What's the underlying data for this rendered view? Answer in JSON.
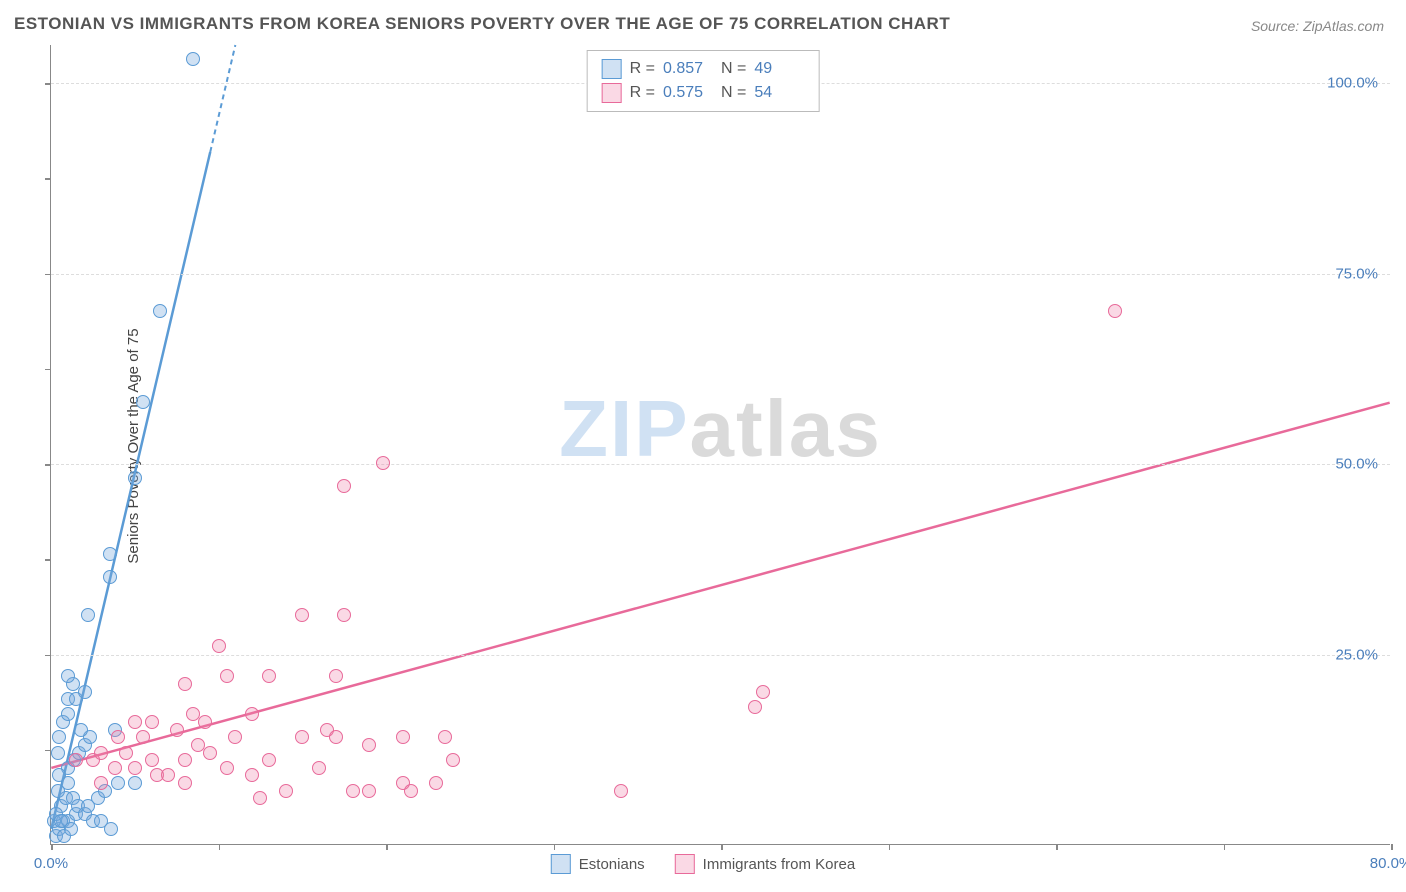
{
  "title": "ESTONIAN VS IMMIGRANTS FROM KOREA SENIORS POVERTY OVER THE AGE OF 75 CORRELATION CHART",
  "source": "Source: ZipAtlas.com",
  "y_axis_label": "Seniors Poverty Over the Age of 75",
  "watermark": {
    "part1": "ZIP",
    "part2": "atlas"
  },
  "chart": {
    "type": "scatter",
    "background_color": "#ffffff",
    "grid_color": "#dddddd",
    "axis_color": "#888888",
    "tick_color": "#4a7ebb",
    "tick_fontsize": 15,
    "title_fontsize": 17,
    "xlim": [
      0,
      80
    ],
    "ylim": [
      0,
      105
    ],
    "y_ticks": [
      {
        "v": 25,
        "label": "25.0%"
      },
      {
        "v": 50,
        "label": "50.0%"
      },
      {
        "v": 75,
        "label": "75.0%"
      },
      {
        "v": 100,
        "label": "100.0%"
      }
    ],
    "x_ticks": [
      {
        "v": 0,
        "label": "0.0%"
      },
      {
        "v": 80,
        "label": "80.0%"
      }
    ],
    "x_minor_ticks": [
      10,
      20,
      30,
      40,
      50,
      60,
      70
    ],
    "y_minor_ticks": [
      12.5,
      37.5,
      62.5,
      87.5
    ]
  },
  "series": [
    {
      "name": "Estonians",
      "color_fill": "rgba(120,170,220,0.35)",
      "color_stroke": "#5b9bd5",
      "marker_size": 14,
      "R": "0.857",
      "N": "49",
      "trend": {
        "x1": 0,
        "y1": 2,
        "x2": 11,
        "y2": 105,
        "dash_from_x": 9.5
      },
      "points": [
        {
          "x": 0.3,
          "y": 1
        },
        {
          "x": 0.5,
          "y": 2
        },
        {
          "x": 0.7,
          "y": 3
        },
        {
          "x": 1.0,
          "y": 3
        },
        {
          "x": 0.8,
          "y": 1
        },
        {
          "x": 1.2,
          "y": 2
        },
        {
          "x": 1.5,
          "y": 4
        },
        {
          "x": 0.6,
          "y": 5
        },
        {
          "x": 0.9,
          "y": 6
        },
        {
          "x": 1.3,
          "y": 6
        },
        {
          "x": 1.6,
          "y": 5
        },
        {
          "x": 2.0,
          "y": 4
        },
        {
          "x": 2.5,
          "y": 3
        },
        {
          "x": 3.0,
          "y": 3
        },
        {
          "x": 3.6,
          "y": 2
        },
        {
          "x": 4.0,
          "y": 8
        },
        {
          "x": 5.0,
          "y": 8
        },
        {
          "x": 1.0,
          "y": 10
        },
        {
          "x": 1.4,
          "y": 11
        },
        {
          "x": 1.7,
          "y": 12
        },
        {
          "x": 2.0,
          "y": 13
        },
        {
          "x": 2.3,
          "y": 14
        },
        {
          "x": 1.8,
          "y": 15
        },
        {
          "x": 0.7,
          "y": 16
        },
        {
          "x": 1.0,
          "y": 17
        },
        {
          "x": 1.0,
          "y": 19
        },
        {
          "x": 1.5,
          "y": 19
        },
        {
          "x": 2.0,
          "y": 20
        },
        {
          "x": 1.3,
          "y": 21
        },
        {
          "x": 1.0,
          "y": 22
        },
        {
          "x": 0.5,
          "y": 14
        },
        {
          "x": 0.5,
          "y": 9
        },
        {
          "x": 1.0,
          "y": 8
        },
        {
          "x": 3.8,
          "y": 15
        },
        {
          "x": 2.2,
          "y": 30
        },
        {
          "x": 3.5,
          "y": 35
        },
        {
          "x": 3.5,
          "y": 38
        },
        {
          "x": 5.0,
          "y": 48
        },
        {
          "x": 5.5,
          "y": 58
        },
        {
          "x": 6.5,
          "y": 70
        },
        {
          "x": 8.5,
          "y": 103
        },
        {
          "x": 2.2,
          "y": 5
        },
        {
          "x": 2.8,
          "y": 6
        },
        {
          "x": 3.2,
          "y": 7
        },
        {
          "x": 0.4,
          "y": 7
        },
        {
          "x": 0.4,
          "y": 12
        },
        {
          "x": 0.2,
          "y": 3
        },
        {
          "x": 0.3,
          "y": 4
        },
        {
          "x": 0.6,
          "y": 3
        }
      ]
    },
    {
      "name": "Immigrants from Korea",
      "color_fill": "rgba(240,130,170,0.30)",
      "color_stroke": "#e86a9a",
      "marker_size": 14,
      "R": "0.575",
      "N": "54",
      "trend": {
        "x1": 0,
        "y1": 10,
        "x2": 80,
        "y2": 58,
        "dash_from_x": 80
      },
      "points": [
        {
          "x": 1.5,
          "y": 11
        },
        {
          "x": 2.5,
          "y": 11
        },
        {
          "x": 3.0,
          "y": 12
        },
        {
          "x": 3.8,
          "y": 10
        },
        {
          "x": 4.5,
          "y": 12
        },
        {
          "x": 5.0,
          "y": 10
        },
        {
          "x": 5.5,
          "y": 14
        },
        {
          "x": 6.0,
          "y": 11
        },
        {
          "x": 6.3,
          "y": 9
        },
        {
          "x": 6.0,
          "y": 16
        },
        {
          "x": 7.0,
          "y": 9
        },
        {
          "x": 7.5,
          "y": 15
        },
        {
          "x": 8.0,
          "y": 11
        },
        {
          "x": 8.0,
          "y": 8
        },
        {
          "x": 8.5,
          "y": 17
        },
        {
          "x": 8.0,
          "y": 21
        },
        {
          "x": 8.8,
          "y": 13
        },
        {
          "x": 9.2,
          "y": 16
        },
        {
          "x": 9.5,
          "y": 12
        },
        {
          "x": 10.0,
          "y": 26
        },
        {
          "x": 10.5,
          "y": 10
        },
        {
          "x": 10.5,
          "y": 22
        },
        {
          "x": 11.0,
          "y": 14
        },
        {
          "x": 12.0,
          "y": 9
        },
        {
          "x": 12.0,
          "y": 17
        },
        {
          "x": 12.5,
          "y": 6
        },
        {
          "x": 13.0,
          "y": 11
        },
        {
          "x": 13.0,
          "y": 22
        },
        {
          "x": 14.0,
          "y": 7
        },
        {
          "x": 15.0,
          "y": 14
        },
        {
          "x": 15.0,
          "y": 30
        },
        {
          "x": 16.0,
          "y": 10
        },
        {
          "x": 16.5,
          "y": 15
        },
        {
          "x": 17.0,
          "y": 14
        },
        {
          "x": 17.0,
          "y": 22
        },
        {
          "x": 17.5,
          "y": 47
        },
        {
          "x": 17.5,
          "y": 30
        },
        {
          "x": 18.0,
          "y": 7
        },
        {
          "x": 19.0,
          "y": 13
        },
        {
          "x": 19.0,
          "y": 7
        },
        {
          "x": 19.8,
          "y": 50
        },
        {
          "x": 21.0,
          "y": 14
        },
        {
          "x": 21.0,
          "y": 8
        },
        {
          "x": 21.5,
          "y": 7
        },
        {
          "x": 23.0,
          "y": 8
        },
        {
          "x": 23.5,
          "y": 14
        },
        {
          "x": 24.0,
          "y": 11
        },
        {
          "x": 34.0,
          "y": 7
        },
        {
          "x": 42.0,
          "y": 18
        },
        {
          "x": 42.5,
          "y": 20
        },
        {
          "x": 63.5,
          "y": 70
        },
        {
          "x": 4.0,
          "y": 14
        },
        {
          "x": 5.0,
          "y": 16
        },
        {
          "x": 3.0,
          "y": 8
        }
      ]
    }
  ],
  "stats_labels": {
    "R": "R =",
    "N": "N ="
  },
  "bottom_legend": [
    {
      "label": "Estonians",
      "series_idx": 0
    },
    {
      "label": "Immigrants from Korea",
      "series_idx": 1
    }
  ]
}
